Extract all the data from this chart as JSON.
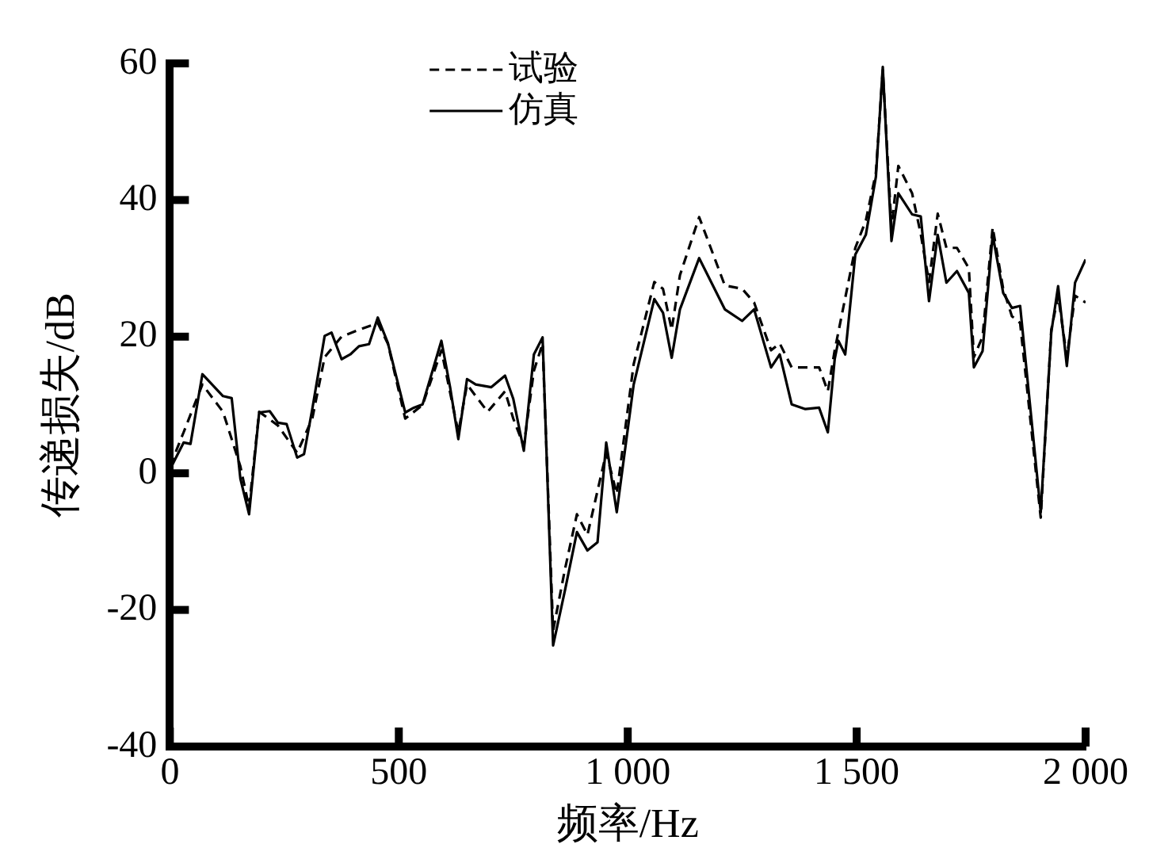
{
  "chart_data": {
    "type": "line",
    "xlabel": "频率/Hz",
    "ylabel": "传递损失/dB",
    "xlim": [
      0,
      2000
    ],
    "xticks": [
      0,
      500,
      {
        "value": 1000,
        "label": "1 000"
      },
      {
        "value": 1500,
        "label": "1 500"
      },
      {
        "value": 2000,
        "label": "2 000"
      }
    ],
    "ylim": [
      -40,
      60
    ],
    "yticks": [
      -40,
      -20,
      0,
      20,
      40,
      60
    ],
    "grid": false,
    "legend": "top",
    "marker": "none",
    "series": [
      {
        "name": "试验",
        "color": "#000000",
        "line_style": "dashed",
        "x": [
          0,
          30,
          71,
          116,
          154,
          173,
          195,
          236,
          278,
          311,
          338,
          375,
          413,
          454,
          476,
          514,
          552,
          593,
          630,
          649,
          694,
          732,
          750,
          773,
          795,
          814,
          837,
          863,
          889,
          912,
          953,
          976,
          1013,
          1058,
          1077,
          1096,
          1114,
          1156,
          1212,
          1250,
          1276,
          1313,
          1332,
          1358,
          1418,
          1437,
          1452,
          1497,
          1520,
          1542,
          1557,
          1576,
          1591,
          1621,
          1640,
          1658,
          1677,
          1696,
          1719,
          1745,
          1756,
          1775,
          1797,
          1820,
          1839,
          1857,
          1902,
          1925,
          1940,
          1959,
          1977,
          2000
        ],
        "values": [
          1,
          6,
          13,
          9,
          1,
          -5,
          9,
          7,
          3,
          8,
          17,
          20,
          21,
          22,
          19,
          8,
          10,
          18,
          6,
          13,
          9,
          12,
          8,
          4,
          15,
          19,
          -23,
          -14,
          -6,
          -9,
          3,
          -3,
          16,
          28,
          27,
          21,
          29,
          37.5,
          27.5,
          27,
          25,
          18,
          19,
          15.5,
          15.5,
          12,
          18,
          33,
          37,
          44,
          59,
          36,
          45,
          41,
          35,
          28,
          38,
          33,
          33,
          30,
          17,
          20,
          36,
          27,
          23,
          22,
          -6.5,
          21,
          26,
          17,
          26,
          25
        ]
      },
      {
        "name": "仿真",
        "color": "#000000",
        "line_style": "solid",
        "x": [
          0,
          11,
          30,
          45,
          71,
          116,
          135,
          154,
          173,
          195,
          218,
          236,
          255,
          278,
          293,
          311,
          338,
          353,
          375,
          394,
          413,
          435,
          454,
          476,
          514,
          533,
          552,
          593,
          612,
          630,
          649,
          668,
          702,
          732,
          750,
          773,
          795,
          814,
          837,
          863,
          889,
          912,
          934,
          953,
          976,
          1013,
          1058,
          1077,
          1096,
          1114,
          1156,
          1212,
          1250,
          1276,
          1313,
          1332,
          1358,
          1388,
          1418,
          1437,
          1452,
          1460,
          1475,
          1497,
          1520,
          1542,
          1557,
          1576,
          1591,
          1621,
          1640,
          1658,
          1677,
          1696,
          1719,
          1745,
          1756,
          1775,
          1797,
          1820,
          1839,
          1857,
          1902,
          1925,
          1940,
          1959,
          1977,
          2000
        ],
        "values": [
          0.5,
          2,
          4.5,
          4.3,
          14.5,
          11.3,
          11,
          -0.8,
          -6,
          8.9,
          9.1,
          7.4,
          7.2,
          2.3,
          2.8,
          9.4,
          20.1,
          20.6,
          16.7,
          17.4,
          18.6,
          18.9,
          22.8,
          19.1,
          8.9,
          9.6,
          10.1,
          19.4,
          12.6,
          5,
          13.8,
          13,
          12.6,
          14.3,
          10.9,
          3.3,
          17.4,
          19.9,
          -25.2,
          -17.1,
          -8.6,
          -11.3,
          -10.1,
          4.5,
          -5.7,
          13,
          25.5,
          23.5,
          16.9,
          24,
          31.5,
          24,
          22.3,
          24,
          15.5,
          17.4,
          10.1,
          9.4,
          9.6,
          6,
          16.7,
          19.4,
          17.4,
          32,
          34.9,
          43.4,
          59.5,
          34,
          41,
          37.9,
          37.6,
          25.2,
          34.9,
          27.9,
          29.6,
          26.4,
          15.5,
          17.9,
          34.9,
          26.4,
          24.2,
          24.5,
          -5.7,
          20.6,
          27.4,
          15.7,
          27.9,
          31.3
        ]
      }
    ]
  }
}
